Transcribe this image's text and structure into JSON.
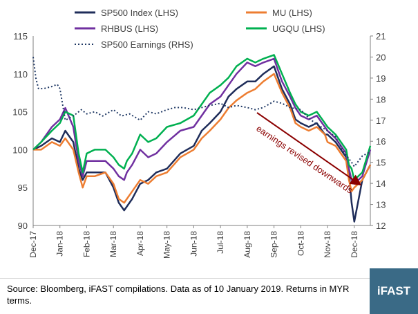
{
  "chart_data": {
    "type": "line",
    "legend": {
      "placement": "top",
      "entries": [
        {
          "label": "SP500 Index (LHS)",
          "color": "#1f2d5a",
          "style": "solid"
        },
        {
          "label": "MU (LHS)",
          "color": "#ed7d31",
          "style": "solid"
        },
        {
          "label": "RHBUS (LHS)",
          "color": "#7030a0",
          "style": "solid"
        },
        {
          "label": "UGQU (LHS)",
          "color": "#00b050",
          "style": "solid"
        },
        {
          "label": "SP500 Earnings (RHS)",
          "color": "#1f3864",
          "style": "dotted"
        }
      ]
    },
    "x_ticks": [
      "Dec-17",
      "Jan-18",
      "Feb-18",
      "Mar-18",
      "Apr-18",
      "May-18",
      "Jun-18",
      "Jul-18",
      "Aug-18",
      "Sep-18",
      "Oct-18",
      "Nov-18",
      "Dec-18"
    ],
    "y_left": {
      "min": 90,
      "max": 115,
      "ticks": [
        "90",
        "95",
        "100",
        "105",
        "110",
        "115"
      ]
    },
    "y_right": {
      "min": 12,
      "max": 21,
      "ticks": [
        "12",
        "13",
        "14",
        "15",
        "16",
        "17",
        "18",
        "19",
        "20",
        "21"
      ]
    },
    "grid": false,
    "annotation": {
      "text": "earnings revised downwards",
      "color": "#8b0000"
    },
    "series": [
      {
        "name": "SP500 Index (LHS)",
        "axis": "left",
        "color": "#1f2d5a",
        "x": [
          0,
          0.3,
          0.7,
          1,
          1.2,
          1.5,
          1.7,
          1.85,
          2,
          2.3,
          2.7,
          3,
          3.2,
          3.4,
          3.5,
          3.7,
          4,
          4.3,
          4.6,
          5,
          5.5,
          6,
          6.3,
          6.6,
          7,
          7.3,
          7.6,
          8,
          8.3,
          8.6,
          9,
          9.3,
          9.6,
          9.8,
          10,
          10.3,
          10.6,
          10.9,
          11,
          11.3,
          11.5,
          11.7,
          11.8,
          11.9,
          12,
          12.3,
          12.6
        ],
        "y": [
          100,
          100.5,
          101.5,
          101,
          102.5,
          101,
          97.5,
          96,
          97,
          97,
          97,
          95,
          93,
          92,
          92.5,
          93.5,
          95.5,
          96,
          97,
          97.5,
          99.5,
          100.5,
          102.5,
          103.5,
          105,
          107,
          108,
          109,
          109,
          110,
          111,
          108,
          106,
          104,
          103.5,
          103,
          103.5,
          102,
          102,
          101,
          100,
          99,
          97,
          93,
          90.5,
          96,
          98
        ]
      },
      {
        "name": "MU (LHS)",
        "axis": "left",
        "color": "#ed7d31",
        "x": [
          0,
          0.3,
          0.7,
          1,
          1.2,
          1.5,
          1.7,
          1.85,
          2,
          2.3,
          2.7,
          3,
          3.2,
          3.4,
          3.5,
          3.7,
          4,
          4.3,
          4.6,
          5,
          5.5,
          6,
          6.3,
          6.6,
          7,
          7.3,
          7.6,
          8,
          8.3,
          8.6,
          9,
          9.3,
          9.6,
          9.8,
          10,
          10.3,
          10.6,
          10.9,
          11,
          11.3,
          11.5,
          11.7,
          11.8,
          11.9,
          12,
          12.3,
          12.6
        ],
        "y": [
          100,
          100,
          101,
          100.5,
          101.5,
          100,
          97,
          95,
          96.5,
          96.5,
          97,
          95.5,
          93.5,
          93,
          93.5,
          94.5,
          96,
          95.5,
          96.5,
          97,
          99,
          100,
          101.5,
          102.5,
          104,
          105.5,
          106.5,
          107.5,
          108,
          109,
          110,
          107.5,
          105.5,
          103.5,
          103,
          102.5,
          103,
          102,
          101,
          100.5,
          99.5,
          98.5,
          96,
          94.5,
          95,
          96,
          98
        ]
      },
      {
        "name": "RHBUS (LHS)",
        "axis": "left",
        "color": "#7030a0",
        "x": [
          0,
          0.3,
          0.7,
          1,
          1.2,
          1.5,
          1.7,
          1.85,
          2,
          2.3,
          2.7,
          3,
          3.2,
          3.4,
          3.5,
          3.7,
          4,
          4.3,
          4.6,
          5,
          5.5,
          6,
          6.3,
          6.6,
          7,
          7.3,
          7.6,
          8,
          8.3,
          8.6,
          9,
          9.3,
          9.6,
          9.8,
          10,
          10.3,
          10.6,
          10.9,
          11,
          11.3,
          11.5,
          11.7,
          11.8,
          11.9,
          12,
          12.3,
          12.6
        ],
        "y": [
          100,
          101,
          103,
          104,
          105.5,
          103,
          98.5,
          96.5,
          98.5,
          98.5,
          98.5,
          97.5,
          96.5,
          96,
          97,
          98,
          100,
          99,
          99.5,
          101,
          102.5,
          103,
          104.5,
          106,
          107,
          108.5,
          110,
          111.5,
          111,
          111.5,
          112,
          109,
          107,
          105.5,
          104.5,
          104,
          104.5,
          103,
          102.5,
          101.5,
          100.5,
          99.5,
          97.5,
          96,
          95.5,
          96.5,
          100
        ]
      },
      {
        "name": "UGQU (LHS)",
        "axis": "left",
        "color": "#00b050",
        "x": [
          0,
          0.3,
          0.7,
          1,
          1.2,
          1.5,
          1.7,
          1.85,
          2,
          2.3,
          2.7,
          3,
          3.2,
          3.4,
          3.5,
          3.7,
          4,
          4.3,
          4.6,
          5,
          5.5,
          6,
          6.3,
          6.6,
          7,
          7.3,
          7.6,
          8,
          8.3,
          8.6,
          9,
          9.3,
          9.6,
          9.8,
          10,
          10.3,
          10.6,
          10.9,
          11,
          11.3,
          11.5,
          11.7,
          11.8,
          11.9,
          12,
          12.3,
          12.6
        ],
        "y": [
          100,
          101,
          102.5,
          103.5,
          105,
          104.5,
          99.5,
          97,
          99.5,
          100,
          100,
          99,
          98,
          97.5,
          98.5,
          99.5,
          102,
          101,
          101.5,
          103,
          103.5,
          104.5,
          106,
          107.5,
          108.5,
          109.5,
          111,
          112,
          111.5,
          112,
          112.5,
          110,
          107.5,
          106,
          105,
          104.5,
          105,
          103.5,
          103,
          102,
          101,
          100,
          98,
          97.5,
          96,
          97,
          100.5
        ]
      },
      {
        "name": "SP500 Earnings (RHS)",
        "axis": "right",
        "color": "#1f3864",
        "style": "dotted",
        "x": [
          0,
          0.1,
          0.2,
          0.4,
          0.7,
          0.9,
          1,
          1.2,
          1.5,
          1.8,
          2,
          2.3,
          2.6,
          3,
          3.3,
          3.6,
          4,
          4.3,
          4.6,
          5,
          5.3,
          5.6,
          6,
          6.3,
          6.6,
          7,
          7.3,
          7.6,
          8,
          8.3,
          8.6,
          9,
          9.3,
          9.6,
          10,
          10.3,
          10.6,
          11,
          11.3,
          11.6,
          11.9,
          12,
          12.3,
          12.6
        ],
        "y": [
          20,
          19,
          18.5,
          18.5,
          18.6,
          18.7,
          18.5,
          17,
          17.2,
          17.5,
          17.3,
          17.4,
          17.2,
          17.5,
          17.2,
          17.3,
          17,
          17.4,
          17.3,
          17.5,
          17.6,
          17.6,
          17.5,
          17.6,
          17.7,
          17.8,
          17.6,
          17.7,
          17.6,
          17.5,
          17.6,
          17.9,
          17.8,
          17.6,
          17.5,
          17.1,
          16.8,
          16.5,
          16.2,
          15.5,
          15,
          14.8,
          15.3,
          15.5
        ]
      }
    ]
  },
  "footer": {
    "source_text": "Source: Bloomberg, iFAST compilations. Data as of 10 January 2019.  Returns in MYR terms.",
    "logo_text": "iFAST"
  }
}
